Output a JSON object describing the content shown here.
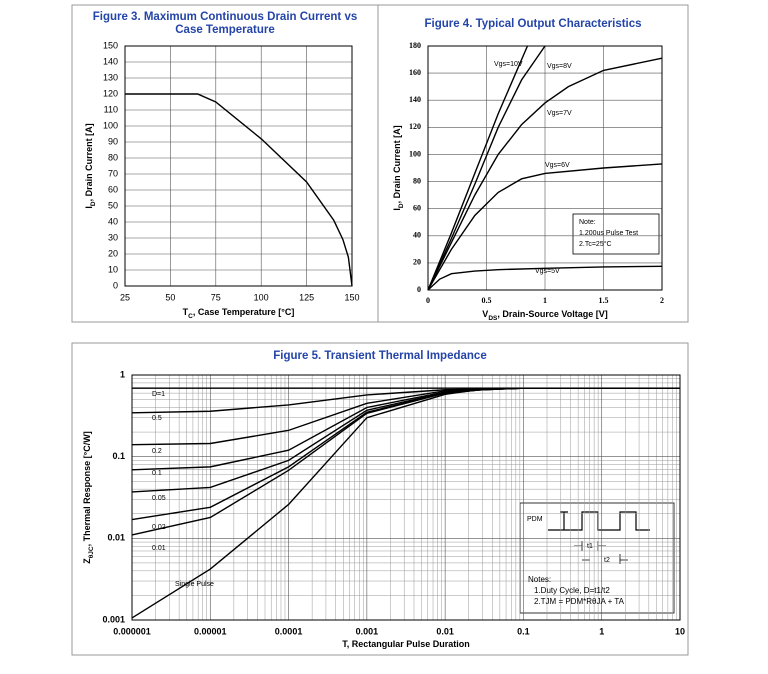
{
  "chart_data": [
    {
      "type": "line",
      "title": [
        "Figure 3. Maximum Continuous Drain Current vs",
        "Case Temperature"
      ],
      "xlabel": [
        "T",
        "C",
        ", Case Temperature [°C]"
      ],
      "ylabel": [
        "I",
        "D",
        ", Drain Current [A]"
      ],
      "x": [
        25,
        65,
        75,
        100,
        125,
        140,
        145,
        148,
        150
      ],
      "values": [
        120,
        120,
        115,
        92,
        65,
        41,
        29,
        18,
        0
      ],
      "color": "#000000",
      "xlim": [
        25,
        150
      ],
      "xticks": [
        25,
        50,
        75,
        100,
        125,
        150
      ],
      "ylim": [
        0,
        150
      ],
      "yticks": [
        0,
        10,
        20,
        30,
        40,
        50,
        60,
        70,
        80,
        90,
        100,
        110,
        120,
        130,
        140,
        150
      ],
      "grid": true
    },
    {
      "type": "line",
      "title": [
        "Figure 4. Typical Output Characteristics"
      ],
      "xlabel": [
        "V",
        "DS",
        ", Drain-Source Voltage [V]"
      ],
      "ylabel": [
        "I",
        "D",
        ", Drain Current [A]"
      ],
      "series": [
        {
          "name": "Vgs=10V",
          "color": "#000000",
          "x": [
            0,
            0.2,
            0.4,
            0.6,
            0.85
          ],
          "values": [
            0,
            42,
            86,
            130,
            180
          ]
        },
        {
          "name": "Vgs=8V",
          "color": "#000000",
          "x": [
            0,
            0.2,
            0.4,
            0.6,
            0.8,
            1
          ],
          "values": [
            0,
            38,
            78,
            120,
            155,
            180
          ]
        },
        {
          "name": "Vgs=7V",
          "color": "#000000",
          "x": [
            0,
            0.2,
            0.4,
            0.6,
            0.8,
            1,
            1.2,
            1.5,
            2
          ],
          "values": [
            0,
            35,
            70,
            100,
            122,
            138,
            150,
            162,
            171
          ]
        },
        {
          "name": "Vgs=6V",
          "color": "#000000",
          "x": [
            0,
            0.1,
            0.2,
            0.4,
            0.6,
            0.8,
            1,
            1.5,
            2
          ],
          "values": [
            0,
            15,
            30,
            55,
            72,
            82,
            86,
            90,
            93
          ]
        },
        {
          "name": "Vgs=5V",
          "color": "#000000",
          "x": [
            0,
            0.1,
            0.2,
            0.4,
            0.6,
            1,
            1.5,
            2
          ],
          "values": [
            0,
            8,
            12,
            14,
            15,
            16,
            17,
            17.5
          ]
        }
      ],
      "note": [
        "Note:",
        "1.200us Pulse Test",
        "2.Tc=25°C"
      ],
      "xlim": [
        0,
        2
      ],
      "xticks": [
        0,
        0.5,
        1,
        1.5,
        2
      ],
      "ylim": [
        0,
        180
      ],
      "yticks": [
        0,
        20,
        40,
        60,
        80,
        100,
        120,
        140,
        160,
        180
      ],
      "grid": true
    },
    {
      "type": "line",
      "title": [
        "Figure 5. Transient Thermal Impedance"
      ],
      "xlabel": [
        "T, Rectangular Pulse Duration"
      ],
      "ylabel": [
        "Z",
        "θJC",
        ", Thermal Response [°C/W]"
      ],
      "x": [
        1e-06,
        1e-05,
        0.0001,
        0.001,
        0.01,
        0.03,
        0.1,
        10
      ],
      "series": [
        {
          "name": "D=1",
          "color": "#000000",
          "values": [
            0.69,
            0.69,
            0.69,
            0.69,
            0.69,
            0.69,
            0.69,
            0.69
          ]
        },
        {
          "name": "0.5",
          "color": "#000000",
          "values": [
            0.344,
            0.36,
            0.43,
            0.57,
            0.66,
            0.68,
            0.69,
            0.69
          ]
        },
        {
          "name": "0.2",
          "color": "#000000",
          "values": [
            0.14,
            0.145,
            0.21,
            0.45,
            0.64,
            0.67,
            0.69,
            0.69
          ]
        },
        {
          "name": "0.1",
          "color": "#000000",
          "values": [
            0.069,
            0.075,
            0.12,
            0.4,
            0.62,
            0.67,
            0.69,
            0.69
          ]
        },
        {
          "name": "0.05",
          "color": "#000000",
          "values": [
            0.037,
            0.042,
            0.09,
            0.37,
            0.61,
            0.66,
            0.69,
            0.69
          ]
        },
        {
          "name": "0.02",
          "color": "#000000",
          "values": [
            0.017,
            0.024,
            0.075,
            0.35,
            0.6,
            0.66,
            0.69,
            0.69
          ]
        },
        {
          "name": "0.01",
          "color": "#000000",
          "values": [
            0.011,
            0.018,
            0.068,
            0.34,
            0.6,
            0.66,
            0.69,
            0.69
          ]
        },
        {
          "name": "Single Pulse",
          "color": "#000000",
          "values": [
            0.00106,
            0.0042,
            0.026,
            0.3,
            0.58,
            0.67,
            0.69,
            0.69
          ]
        }
      ],
      "inset": {
        "pdm": "PDM",
        "t1": "t1",
        "t2": "t2",
        "notes": [
          "Notes:",
          "1.Duty  Cycle, D=t1/t2",
          "2.TJM = PDM*RθJA + TA"
        ]
      },
      "xscale": "log",
      "yscale": "log",
      "xlim": [
        1e-06,
        10
      ],
      "xticks": [
        1e-06,
        1e-05,
        0.0001,
        0.001,
        0.01,
        0.1,
        1,
        10
      ],
      "ylim": [
        0.001,
        1
      ],
      "yticks": [
        0.001,
        0.01,
        0.1,
        1
      ],
      "grid": true
    }
  ]
}
